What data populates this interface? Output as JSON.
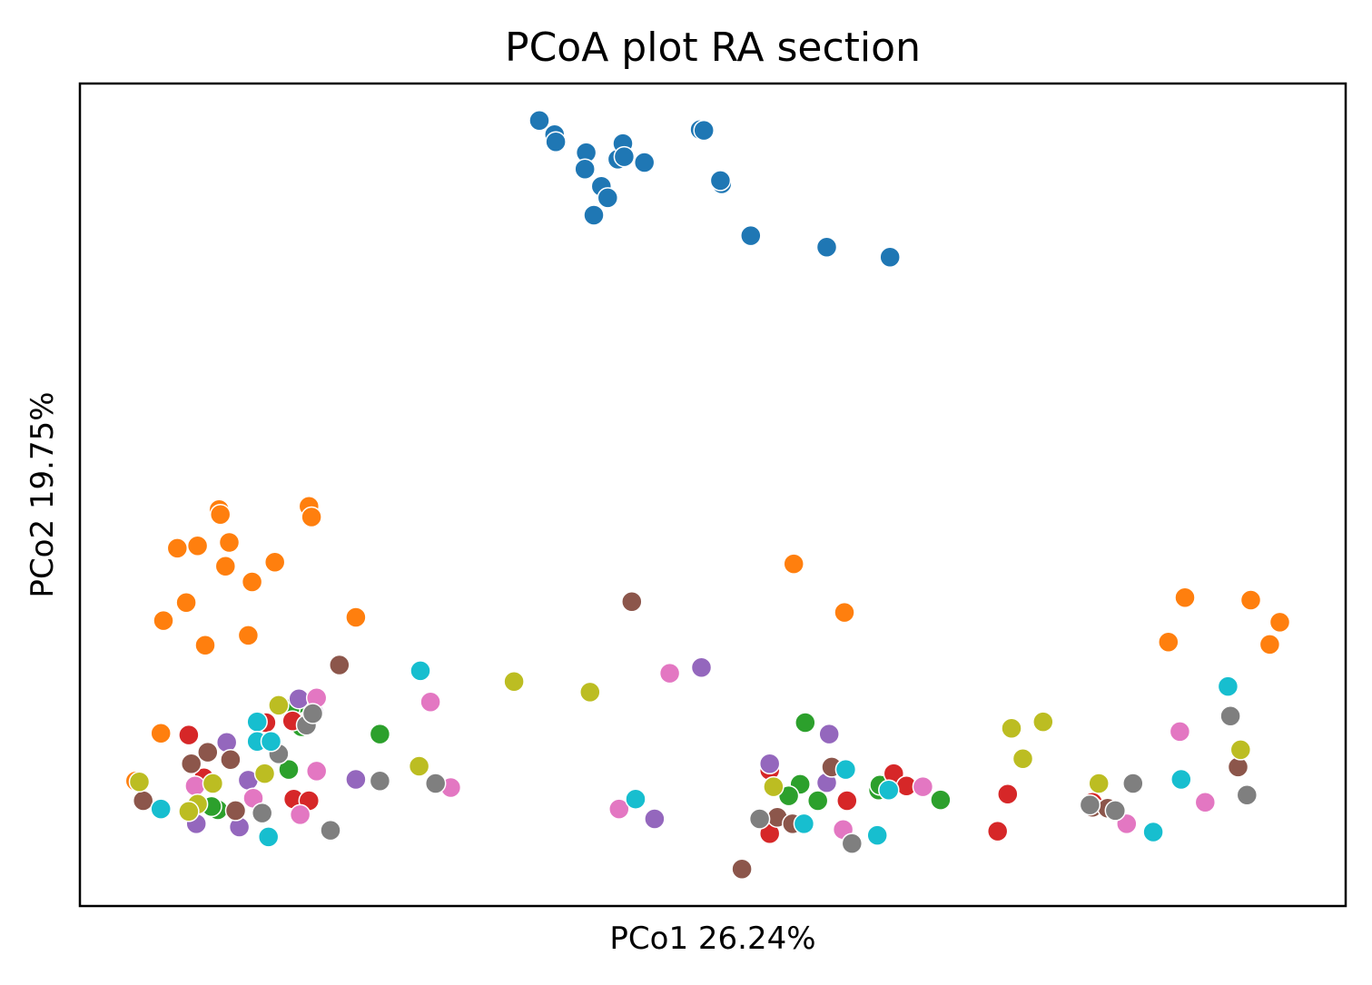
{
  "chart_data": {
    "type": "scatter",
    "title": "PCoA plot RA section",
    "xlabel": "PCo1 26.24%",
    "ylabel": "PCo2 19.75%",
    "xlim": [
      0,
      100
    ],
    "ylim": [
      0,
      100
    ],
    "axis_ticks": false,
    "grid": false,
    "legend": false,
    "colors": [
      "#1f77b4",
      "#ff7f0e",
      "#2ca02c",
      "#d62728",
      "#9467bd",
      "#8c564b",
      "#e377c2",
      "#7f7f7f",
      "#bcbd22",
      "#17becf"
    ],
    "series": [
      {
        "color": "#1f77b4",
        "points": [
          [
            36.3,
            95.5
          ],
          [
            37.5,
            93.8
          ],
          [
            37.6,
            92.9
          ],
          [
            40.0,
            91.6
          ],
          [
            39.9,
            89.6
          ],
          [
            41.2,
            87.5
          ],
          [
            42.5,
            90.8
          ],
          [
            42.9,
            92.7
          ],
          [
            43.0,
            91.1
          ],
          [
            44.6,
            90.4
          ],
          [
            49.0,
            94.4
          ],
          [
            49.3,
            94.3
          ],
          [
            50.7,
            87.8
          ],
          [
            50.6,
            88.2
          ],
          [
            40.6,
            84.0
          ],
          [
            41.7,
            86.1
          ],
          [
            53.0,
            81.5
          ],
          [
            59.0,
            80.1
          ],
          [
            64.0,
            78.9
          ]
        ]
      },
      {
        "color": "#ff7f0e",
        "points": [
          [
            11.0,
            48.2
          ],
          [
            11.1,
            47.6
          ],
          [
            18.1,
            48.6
          ],
          [
            18.3,
            47.3
          ],
          [
            7.7,
            43.5
          ],
          [
            9.3,
            43.8
          ],
          [
            11.8,
            44.2
          ],
          [
            11.5,
            41.3
          ],
          [
            15.4,
            41.8
          ],
          [
            13.6,
            39.4
          ],
          [
            8.4,
            36.9
          ],
          [
            6.6,
            34.7
          ],
          [
            9.9,
            31.7
          ],
          [
            13.3,
            32.9
          ],
          [
            21.8,
            35.1
          ],
          [
            56.4,
            41.6
          ],
          [
            60.4,
            35.7
          ],
          [
            87.3,
            37.5
          ],
          [
            92.5,
            37.2
          ],
          [
            94.8,
            34.5
          ],
          [
            86.0,
            32.1
          ],
          [
            94.0,
            31.8
          ],
          [
            6.4,
            21.0
          ],
          [
            4.4,
            15.2
          ]
        ]
      },
      {
        "color": "#2ca02c",
        "points": [
          [
            17.2,
            24.6
          ],
          [
            17.5,
            21.8
          ],
          [
            16.6,
            24.0
          ],
          [
            23.7,
            20.9
          ],
          [
            16.5,
            16.6
          ],
          [
            10.9,
            11.7
          ],
          [
            10.4,
            12.1
          ],
          [
            57.3,
            22.3
          ],
          [
            56.9,
            14.8
          ],
          [
            56.0,
            13.4
          ],
          [
            58.3,
            12.8
          ],
          [
            63.1,
            14.1
          ],
          [
            63.2,
            14.7
          ],
          [
            68.0,
            12.9
          ]
        ]
      },
      {
        "color": "#d62728",
        "points": [
          [
            8.6,
            20.8
          ],
          [
            9.8,
            15.6
          ],
          [
            14.7,
            22.3
          ],
          [
            16.8,
            22.5
          ],
          [
            16.9,
            13.0
          ],
          [
            18.1,
            12.8
          ],
          [
            54.5,
            16.5
          ],
          [
            60.6,
            12.8
          ],
          [
            54.5,
            8.8
          ],
          [
            64.3,
            16.1
          ],
          [
            65.3,
            14.6
          ],
          [
            73.3,
            13.6
          ],
          [
            72.5,
            9.1
          ],
          [
            80.0,
            12.6
          ]
        ]
      },
      {
        "color": "#9467bd",
        "points": [
          [
            11.6,
            19.9
          ],
          [
            17.3,
            25.2
          ],
          [
            18.5,
            23.5
          ],
          [
            13.3,
            15.3
          ],
          [
            9.2,
            10.0
          ],
          [
            12.6,
            9.6
          ],
          [
            21.8,
            15.4
          ],
          [
            49.1,
            29.0
          ],
          [
            54.5,
            17.3
          ],
          [
            59.2,
            20.9
          ],
          [
            59.0,
            15.0
          ],
          [
            45.4,
            10.6
          ]
        ]
      },
      {
        "color": "#8c564b",
        "points": [
          [
            20.5,
            29.3
          ],
          [
            8.8,
            17.3
          ],
          [
            10.1,
            18.7
          ],
          [
            11.9,
            17.8
          ],
          [
            5.0,
            12.8
          ],
          [
            12.3,
            11.6
          ],
          [
            43.6,
            37.0
          ],
          [
            59.4,
            16.9
          ],
          [
            55.1,
            10.8
          ],
          [
            56.3,
            10.0
          ],
          [
            80.0,
            12.0
          ],
          [
            81.2,
            11.9
          ],
          [
            91.5,
            16.9
          ],
          [
            52.3,
            4.5
          ]
        ]
      },
      {
        "color": "#e377c2",
        "points": [
          [
            18.7,
            25.3
          ],
          [
            27.7,
            24.8
          ],
          [
            18.7,
            16.4
          ],
          [
            9.1,
            14.6
          ],
          [
            13.7,
            13.1
          ],
          [
            17.4,
            11.1
          ],
          [
            29.3,
            14.4
          ],
          [
            46.6,
            28.3
          ],
          [
            42.6,
            11.8
          ],
          [
            60.3,
            9.3
          ],
          [
            66.6,
            14.5
          ],
          [
            86.9,
            21.2
          ],
          [
            82.7,
            10.0
          ],
          [
            88.9,
            12.6
          ]
        ]
      },
      {
        "color": "#7f7f7f",
        "points": [
          [
            15.7,
            18.5
          ],
          [
            17.9,
            22.0
          ],
          [
            18.4,
            23.4
          ],
          [
            14.4,
            11.3
          ],
          [
            19.8,
            9.2
          ],
          [
            23.7,
            15.2
          ],
          [
            28.1,
            14.9
          ],
          [
            53.7,
            10.6
          ],
          [
            61.0,
            7.6
          ],
          [
            79.8,
            12.3
          ],
          [
            81.8,
            11.6
          ],
          [
            83.2,
            14.9
          ],
          [
            90.9,
            23.1
          ],
          [
            92.2,
            13.5
          ]
        ]
      },
      {
        "color": "#bcbd22",
        "points": [
          [
            15.7,
            24.4
          ],
          [
            4.7,
            15.1
          ],
          [
            10.5,
            14.9
          ],
          [
            14.6,
            16.1
          ],
          [
            9.3,
            12.4
          ],
          [
            8.6,
            11.5
          ],
          [
            26.8,
            17.0
          ],
          [
            34.3,
            27.3
          ],
          [
            40.3,
            26.0
          ],
          [
            54.8,
            14.5
          ],
          [
            73.6,
            21.6
          ],
          [
            76.1,
            22.4
          ],
          [
            74.5,
            17.9
          ],
          [
            80.5,
            14.9
          ],
          [
            91.7,
            19.0
          ]
        ]
      },
      {
        "color": "#17becf",
        "points": [
          [
            26.9,
            28.6
          ],
          [
            14.0,
            22.4
          ],
          [
            14.0,
            20.0
          ],
          [
            15.1,
            20.0
          ],
          [
            6.4,
            11.8
          ],
          [
            14.9,
            8.4
          ],
          [
            43.9,
            13.0
          ],
          [
            57.2,
            10.0
          ],
          [
            60.5,
            16.6
          ],
          [
            63.9,
            14.1
          ],
          [
            63.0,
            8.6
          ],
          [
            84.8,
            9.0
          ],
          [
            87.0,
            15.4
          ],
          [
            90.7,
            26.7
          ]
        ]
      }
    ]
  }
}
